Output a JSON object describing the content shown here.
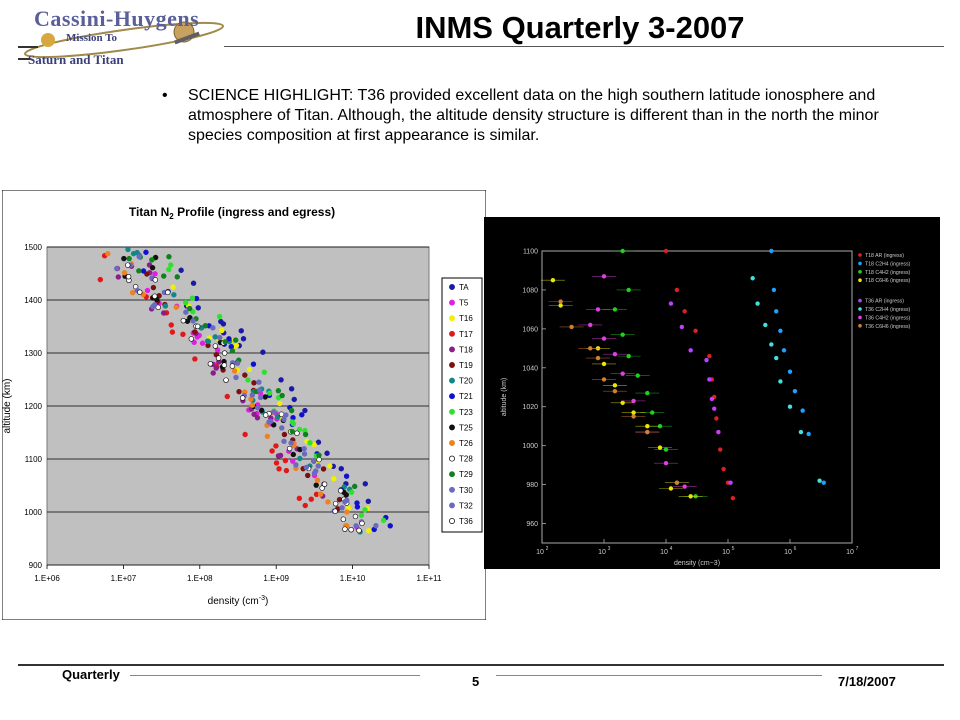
{
  "header": {
    "logo": {
      "line1": "Cassini-Huygens",
      "line2": "Mission To",
      "line3": "Saturn and Titan"
    },
    "title": "INMS Quarterly 3-2007"
  },
  "highlight": {
    "bullet": "•",
    "text": "SCIENCE HIGHLIGHT: T36 provided excellent data on the high southern latitude ionosphere and atmosphere of Titan. Although, the altitude density structure is different than in the north the minor species composition at first appearance is similar."
  },
  "chart_data": [
    {
      "type": "scatter",
      "title_main": "Titan N",
      "title_sub": "2",
      "title_rest": " Profile (ingress and egress)",
      "xlabel_main": "density (cm",
      "xlabel_sup": "-3",
      "xlabel_end": ")",
      "ylabel": "altitude (km)",
      "xscale": "log",
      "xlim": [
        1000000,
        100000000000
      ],
      "ylim": [
        900,
        1500
      ],
      "xticks": [
        "1.E+06",
        "1.E+07",
        "1.E+08",
        "1.E+09",
        "1.E+10",
        "1.E+11"
      ],
      "yticks": [
        "900",
        "1000",
        "1100",
        "1200",
        "1300",
        "1400",
        "1500"
      ],
      "grid": true,
      "legend_position": "right",
      "series": [
        {
          "name": "TA",
          "color": "#1a1aa8",
          "offset": 0.35
        },
        {
          "name": "T5",
          "color": "#e020e0",
          "offset": -0.1
        },
        {
          "name": "T16",
          "color": "#f0f000",
          "offset": 0.1
        },
        {
          "name": "T17",
          "color": "#e01818",
          "offset": -0.4
        },
        {
          "name": "T18",
          "color": "#8a1e8a",
          "offset": -0.2
        },
        {
          "name": "T19",
          "color": "#7a1010",
          "offset": -0.05
        },
        {
          "name": "T20",
          "color": "#108888",
          "offset": 0.05
        },
        {
          "name": "T21",
          "color": "#1010d0",
          "offset": 0.25
        },
        {
          "name": "T23",
          "color": "#30e030",
          "offset": 0.2
        },
        {
          "name": "T25",
          "color": "#111111",
          "offset": 0.0
        },
        {
          "name": "T26",
          "color": "#f08020",
          "offset": -0.15
        },
        {
          "name": "T28",
          "color": "#ffffff",
          "offset": -0.02
        },
        {
          "name": "T29",
          "color": "#108020",
          "offset": 0.15
        },
        {
          "name": "T30",
          "color": "#6a6ac0",
          "offset": -0.08
        },
        {
          "name": "T32",
          "color": "#6a6ac0",
          "offset": 0.02
        },
        {
          "name": "T36",
          "color": "#ffffff",
          "offset": -0.12
        }
      ]
    },
    {
      "type": "scatter",
      "xlabel": "density (cm−3)",
      "ylabel": "altitude (km)",
      "xscale": "log",
      "xlim": [
        100,
        10000000
      ],
      "ylim": [
        950,
        1100
      ],
      "xticks": [
        "10",
        "10",
        "10",
        "10",
        "10",
        "10"
      ],
      "xtick_exponents": [
        "2",
        "3",
        "4",
        "5",
        "6",
        "7"
      ],
      "yticks": [
        "960",
        "980",
        "1000",
        "1020",
        "1040",
        "1060",
        "1080",
        "1100"
      ],
      "legend_position": "right",
      "background": "#000000",
      "series": [
        {
          "name": "T18 AR (ingress)",
          "color": "#e02020",
          "points": [
            [
              120000,
              973
            ],
            [
              100000,
              981
            ],
            [
              85000,
              988
            ],
            [
              75000,
              998
            ],
            [
              70000,
              1007
            ],
            [
              65000,
              1014
            ],
            [
              60000,
              1025
            ],
            [
              55000,
              1034
            ],
            [
              50000,
              1046
            ],
            [
              30000,
              1059
            ],
            [
              20000,
              1069
            ],
            [
              15000,
              1080
            ],
            [
              10000,
              1100
            ]
          ]
        },
        {
          "name": "T18 C2H4 (ingress)",
          "color": "#20a0ff",
          "points": [
            [
              3500000,
              981
            ],
            [
              2000000,
              1006
            ],
            [
              1600000,
              1018
            ],
            [
              1200000,
              1028
            ],
            [
              1000000,
              1038
            ],
            [
              800000,
              1049
            ],
            [
              700000,
              1059
            ],
            [
              600000,
              1069
            ],
            [
              550000,
              1080
            ],
            [
              500000,
              1100
            ]
          ]
        },
        {
          "name": "T18 C4H2 (ingress)",
          "color": "#20d020",
          "points": [
            [
              30000,
              974
            ],
            [
              15000,
              981
            ],
            [
              10000,
              998
            ],
            [
              8000,
              1010
            ],
            [
              6000,
              1017
            ],
            [
              5000,
              1027
            ],
            [
              3500,
              1036
            ],
            [
              2500,
              1046
            ],
            [
              2000,
              1057
            ],
            [
              1500,
              1070
            ],
            [
              2500,
              1080
            ],
            [
              2000,
              1100
            ]
          ]
        },
        {
          "name": "T18 C6H6 (ingress)",
          "color": "#e8e800",
          "points": [
            [
              25000,
              974
            ],
            [
              12000,
              978
            ],
            [
              8000,
              999
            ],
            [
              5000,
              1010
            ],
            [
              3000,
              1017
            ],
            [
              2000,
              1022
            ],
            [
              1500,
              1031
            ],
            [
              1000,
              1042
            ],
            [
              800,
              1050
            ],
            [
              200,
              1072
            ],
            [
              150,
              1085
            ]
          ]
        },
        {
          "name": "T36 AR (ingress)",
          "color": "#c040ff",
          "points": [
            [
              110000,
              981
            ],
            [
              70000,
              1007
            ],
            [
              60000,
              1019
            ],
            [
              55000,
              1024
            ],
            [
              50000,
              1034
            ],
            [
              45000,
              1044
            ],
            [
              25000,
              1049
            ],
            [
              18000,
              1061
            ],
            [
              12000,
              1073
            ]
          ]
        },
        {
          "name": "T36 C2H4 (ingress)",
          "color": "#40e0e0",
          "points": [
            [
              3000000,
              982
            ],
            [
              1500000,
              1007
            ],
            [
              1000000,
              1020
            ],
            [
              700000,
              1033
            ],
            [
              600000,
              1045
            ],
            [
              500000,
              1052
            ],
            [
              400000,
              1062
            ],
            [
              300000,
              1073
            ],
            [
              250000,
              1086
            ]
          ]
        },
        {
          "name": "T36 C4H2 (ingress)",
          "color": "#e040e0",
          "points": [
            [
              20000,
              979
            ],
            [
              10000,
              991
            ],
            [
              5000,
              1007
            ],
            [
              3000,
              1023
            ],
            [
              2000,
              1037
            ],
            [
              1500,
              1047
            ],
            [
              1000,
              1055
            ],
            [
              600,
              1062
            ],
            [
              800,
              1070
            ],
            [
              1000,
              1087
            ]
          ]
        },
        {
          "name": "T36 C6H6 (ingress)",
          "color": "#d08030",
          "points": [
            [
              15000,
              981
            ],
            [
              5000,
              1007
            ],
            [
              3000,
              1015
            ],
            [
              1500,
              1028
            ],
            [
              1000,
              1034
            ],
            [
              800,
              1045
            ],
            [
              600,
              1050
            ],
            [
              300,
              1061
            ],
            [
              200,
              1074
            ]
          ]
        }
      ]
    }
  ],
  "footer": {
    "left": "Quarterly",
    "page": "5",
    "date": "7/18/2007"
  }
}
